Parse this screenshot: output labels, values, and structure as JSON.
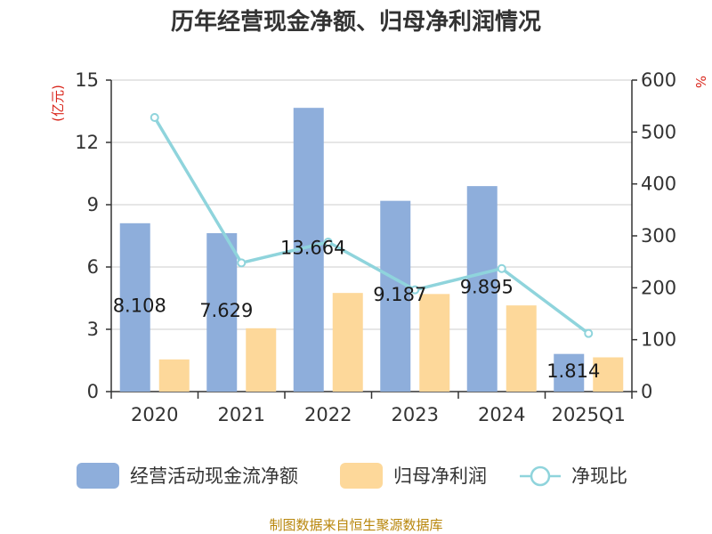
{
  "chart_data": {
    "type": "bar",
    "title": "历年经营现金净额、归母净利润情况",
    "categories": [
      "2020",
      "2021",
      "2022",
      "2023",
      "2024",
      "2025Q1"
    ],
    "y_left": {
      "unit": "(亿元)",
      "min": 0,
      "max": 15,
      "ticks": [
        "0",
        "3",
        "6",
        "9",
        "12",
        "15"
      ]
    },
    "y_right": {
      "unit": "%",
      "min": 0,
      "max": 600,
      "ticks": [
        "0",
        "100",
        "200",
        "300",
        "400",
        "500",
        "600"
      ]
    },
    "grid": true,
    "legend_position": "bottom",
    "series": [
      {
        "name": "经营活动现金流净额",
        "kind": "bar",
        "axis": "left",
        "color": "#8eaedb",
        "values": [
          8.108,
          7.629,
          13.664,
          9.187,
          9.895,
          1.814
        ],
        "labels": [
          "8.108",
          "7.629",
          "13.664",
          "9.187",
          "9.895",
          "1.814"
        ]
      },
      {
        "name": "归母净利润",
        "kind": "bar",
        "axis": "left",
        "color": "#fdd89a",
        "values": [
          1.55,
          3.05,
          4.75,
          4.7,
          4.15,
          1.65
        ]
      },
      {
        "name": "净现比",
        "kind": "line",
        "axis": "right",
        "color": "#8fd4dc",
        "values": [
          528,
          248,
          288,
          196,
          237,
          112
        ]
      }
    ]
  },
  "source_text": "制图数据来自恒生聚源数据库"
}
